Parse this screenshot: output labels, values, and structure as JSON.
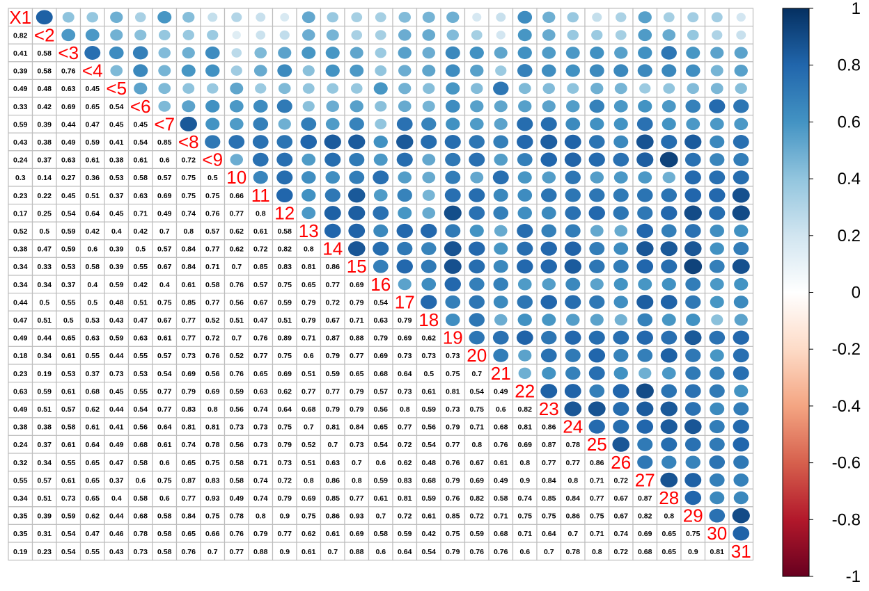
{
  "chart_data": {
    "type": "heatmap",
    "subtype": "correlation-matrix",
    "layout": "lower-numbers-upper-ellipses",
    "variables": [
      "X1",
      "X2",
      "X3",
      "X4",
      "X5",
      "X6",
      "X7",
      "X8",
      "X9",
      "X10",
      "X11",
      "X12",
      "X13",
      "X14",
      "X15",
      "X16",
      "X17",
      "X18",
      "X19",
      "X20",
      "X21",
      "X22",
      "X23",
      "X24",
      "X25",
      "X26",
      "X27",
      "X28",
      "X29",
      "X30",
      "X31"
    ],
    "diagonal_labels": [
      "X1",
      "<2",
      "<3",
      "<4",
      "<5",
      "<6",
      "<7",
      "<8",
      "<9",
      "10",
      "11",
      "12",
      "13",
      "14",
      "15",
      "16",
      "17",
      "18",
      "19",
      "20",
      "21",
      "22",
      "23",
      "24",
      "25",
      "26",
      "27",
      "28",
      "29",
      "30",
      "31"
    ],
    "lower_triangle": [
      [],
      [
        0.82
      ],
      [
        0.41,
        0.58
      ],
      [
        0.39,
        0.58,
        0.76
      ],
      [
        0.49,
        0.48,
        0.63,
        0.45
      ],
      [
        0.33,
        0.42,
        0.69,
        0.65,
        0.54
      ],
      [
        0.59,
        0.39,
        0.44,
        0.47,
        0.45,
        0.45
      ],
      [
        0.43,
        0.38,
        0.49,
        0.59,
        0.41,
        0.54,
        0.85
      ],
      [
        0.24,
        0.37,
        0.63,
        0.61,
        0.38,
        0.61,
        0.6,
        0.72
      ],
      [
        0.3,
        0.14,
        0.27,
        0.36,
        0.53,
        0.58,
        0.57,
        0.75,
        0.5
      ],
      [
        0.23,
        0.22,
        0.45,
        0.51,
        0.37,
        0.63,
        0.69,
        0.75,
        0.75,
        0.66
      ],
      [
        0.17,
        0.25,
        0.54,
        0.64,
        0.45,
        0.71,
        0.49,
        0.74,
        0.76,
        0.77,
        0.8
      ],
      [
        0.52,
        0.5,
        0.59,
        0.42,
        0.4,
        0.42,
        0.7,
        0.8,
        0.57,
        0.62,
        0.61,
        0.58
      ],
      [
        0.38,
        0.47,
        0.59,
        0.6,
        0.39,
        0.5,
        0.57,
        0.84,
        0.77,
        0.62,
        0.72,
        0.82,
        0.8
      ],
      [
        0.34,
        0.33,
        0.53,
        0.58,
        0.39,
        0.55,
        0.67,
        0.84,
        0.71,
        0.7,
        0.85,
        0.83,
        0.81,
        0.86
      ],
      [
        0.34,
        0.34,
        0.37,
        0.4,
        0.59,
        0.42,
        0.4,
        0.61,
        0.58,
        0.76,
        0.57,
        0.75,
        0.65,
        0.77,
        0.69
      ],
      [
        0.44,
        0.5,
        0.55,
        0.5,
        0.48,
        0.51,
        0.75,
        0.85,
        0.77,
        0.56,
        0.67,
        0.59,
        0.79,
        0.72,
        0.79,
        0.54
      ],
      [
        0.47,
        0.51,
        0.5,
        0.53,
        0.43,
        0.47,
        0.67,
        0.77,
        0.52,
        0.51,
        0.47,
        0.51,
        0.79,
        0.67,
        0.71,
        0.63,
        0.79
      ],
      [
        0.49,
        0.44,
        0.65,
        0.63,
        0.59,
        0.63,
        0.61,
        0.77,
        0.72,
        0.7,
        0.76,
        0.89,
        0.71,
        0.87,
        0.88,
        0.79,
        0.69,
        0.62
      ],
      [
        0.18,
        0.34,
        0.61,
        0.55,
        0.44,
        0.55,
        0.57,
        0.73,
        0.76,
        0.52,
        0.77,
        0.75,
        0.6,
        0.79,
        0.77,
        0.69,
        0.73,
        0.73,
        0.73
      ],
      [
        0.23,
        0.19,
        0.53,
        0.37,
        0.73,
        0.53,
        0.54,
        0.69,
        0.56,
        0.76,
        0.65,
        0.69,
        0.51,
        0.59,
        0.65,
        0.68,
        0.64,
        0.5,
        0.75,
        0.7
      ],
      [
        0.63,
        0.59,
        0.61,
        0.68,
        0.45,
        0.55,
        0.77,
        0.79,
        0.69,
        0.59,
        0.63,
        0.62,
        0.77,
        0.77,
        0.79,
        0.57,
        0.73,
        0.61,
        0.81,
        0.54,
        0.49
      ],
      [
        0.49,
        0.51,
        0.57,
        0.62,
        0.44,
        0.54,
        0.77,
        0.83,
        0.8,
        0.56,
        0.74,
        0.64,
        0.68,
        0.79,
        0.79,
        0.56,
        0.8,
        0.59,
        0.73,
        0.75,
        0.6,
        0.82
      ],
      [
        0.38,
        0.38,
        0.58,
        0.61,
        0.41,
        0.56,
        0.64,
        0.81,
        0.81,
        0.73,
        0.73,
        0.75,
        0.7,
        0.81,
        0.84,
        0.65,
        0.77,
        0.56,
        0.79,
        0.71,
        0.68,
        0.81,
        0.86
      ],
      [
        0.24,
        0.37,
        0.61,
        0.64,
        0.49,
        0.68,
        0.61,
        0.74,
        0.78,
        0.56,
        0.73,
        0.79,
        0.52,
        0.7,
        0.73,
        0.54,
        0.72,
        0.54,
        0.77,
        0.8,
        0.76,
        0.69,
        0.87,
        0.78
      ],
      [
        0.32,
        0.34,
        0.55,
        0.65,
        0.47,
        0.58,
        0.6,
        0.65,
        0.75,
        0.58,
        0.71,
        0.73,
        0.51,
        0.63,
        0.7,
        0.6,
        0.62,
        0.48,
        0.76,
        0.67,
        0.61,
        0.8,
        0.77,
        0.77,
        0.86
      ],
      [
        0.55,
        0.57,
        0.61,
        0.65,
        0.37,
        0.6,
        0.75,
        0.87,
        0.83,
        0.58,
        0.74,
        0.72,
        0.8,
        0.86,
        0.8,
        0.59,
        0.83,
        0.68,
        0.79,
        0.69,
        0.49,
        0.9,
        0.84,
        0.8,
        0.71,
        0.72
      ],
      [
        0.34,
        0.51,
        0.73,
        0.65,
        0.4,
        0.58,
        0.6,
        0.77,
        0.93,
        0.49,
        0.74,
        0.79,
        0.69,
        0.85,
        0.77,
        0.61,
        0.81,
        0.59,
        0.76,
        0.82,
        0.58,
        0.74,
        0.85,
        0.84,
        0.77,
        0.67,
        0.87
      ],
      [
        0.35,
        0.39,
        0.59,
        0.62,
        0.44,
        0.68,
        0.58,
        0.84,
        0.75,
        0.78,
        0.8,
        0.9,
        0.75,
        0.86,
        0.93,
        0.7,
        0.72,
        0.61,
        0.85,
        0.72,
        0.71,
        0.75,
        0.75,
        0.86,
        0.75,
        0.67,
        0.82,
        0.8
      ],
      [
        0.35,
        0.31,
        0.54,
        0.47,
        0.46,
        0.78,
        0.58,
        0.65,
        0.66,
        0.76,
        0.79,
        0.77,
        0.62,
        0.61,
        0.69,
        0.58,
        0.59,
        0.42,
        0.75,
        0.59,
        0.68,
        0.71,
        0.64,
        0.7,
        0.71,
        0.74,
        0.69,
        0.65,
        0.75
      ],
      [
        0.19,
        0.23,
        0.54,
        0.55,
        0.43,
        0.73,
        0.58,
        0.76,
        0.7,
        0.77,
        0.88,
        0.9,
        0.61,
        0.7,
        0.88,
        0.6,
        0.64,
        0.54,
        0.79,
        0.76,
        0.76,
        0.6,
        0.7,
        0.78,
        0.8,
        0.72,
        0.68,
        0.65,
        0.9,
        0.81
      ]
    ],
    "colorbar": {
      "range": [
        -1,
        1
      ],
      "ticks": [
        "1",
        "0.8",
        "0.6",
        "0.4",
        "0.2",
        "0",
        "-0.2",
        "-0.4",
        "-0.6",
        "-0.8",
        "-1"
      ],
      "tick_values": [
        1,
        0.8,
        0.6,
        0.4,
        0.2,
        0,
        -0.2,
        -0.4,
        -0.6,
        -0.8,
        -1
      ],
      "color_stops": [
        "#67001F",
        "#B2182B",
        "#D6604D",
        "#F4A582",
        "#FDDBC7",
        "#FFFFFF",
        "#D1E5F0",
        "#92C5DE",
        "#4393C3",
        "#2166AC",
        "#053061"
      ]
    },
    "colors": {
      "grid": "#bdbdbd",
      "label": "#ff0000",
      "number": "#000000"
    },
    "title": "",
    "xlabel": "",
    "ylabel": ""
  }
}
